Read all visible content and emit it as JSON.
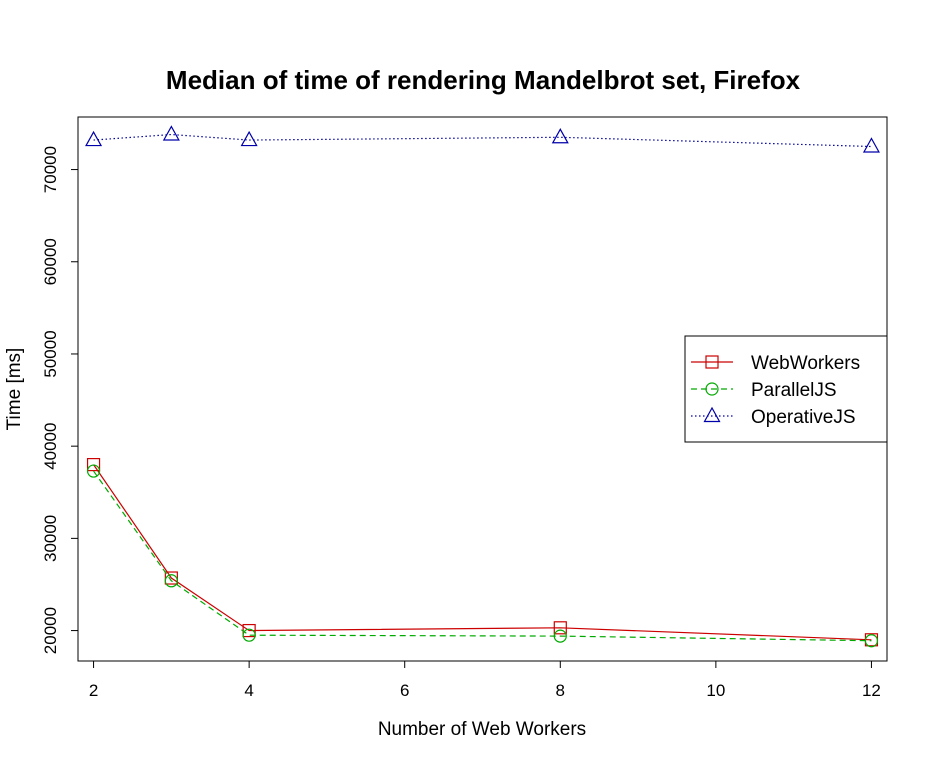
{
  "chart_data": {
    "type": "line",
    "title": "Median of time of rendering Mandelbrot set, Firefox",
    "xlabel": "Number of Web Workers",
    "ylabel": "Time [ms]",
    "x": [
      2,
      3,
      4,
      8,
      12
    ],
    "xlim": [
      1.8,
      12.2
    ],
    "ylim": [
      16700,
      75700
    ],
    "xticks": [
      2,
      4,
      6,
      8,
      10,
      12
    ],
    "yticks": [
      20000,
      30000,
      40000,
      50000,
      60000,
      70000
    ],
    "grid": false,
    "legend_position": "right",
    "series": [
      {
        "name": "WebWorkers",
        "values": [
          38000,
          25700,
          20000,
          20300,
          19000
        ],
        "color": "#cc0000",
        "marker": "square",
        "line": "solid"
      },
      {
        "name": "ParallelJS",
        "values": [
          37300,
          25400,
          19500,
          19400,
          18900
        ],
        "color": "#00aa00",
        "marker": "circle",
        "line": "dashed"
      },
      {
        "name": "OperativeJS",
        "values": [
          73200,
          73800,
          73200,
          73500,
          72500
        ],
        "color": "#0000aa",
        "marker": "triangle",
        "line": "dotted"
      }
    ]
  }
}
